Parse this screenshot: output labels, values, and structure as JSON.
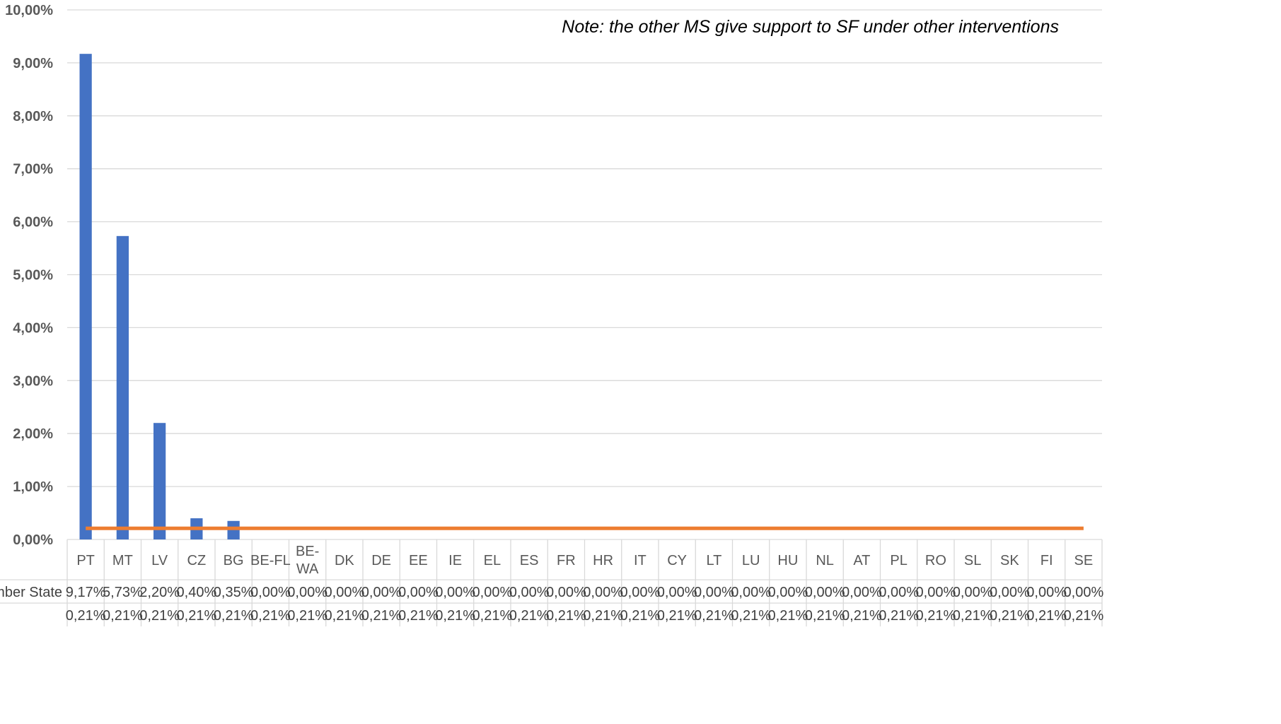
{
  "chart_data": {
    "type": "bar",
    "note": "Note: the other MS give support to SF under other interventions",
    "categories": [
      "PT",
      "MT",
      "LV",
      "CZ",
      "BG",
      "BE-FL",
      "BE-WA",
      "DK",
      "DE",
      "EE",
      "IE",
      "EL",
      "ES",
      "FR",
      "HR",
      "IT",
      "CY",
      "LT",
      "LU",
      "HU",
      "NL",
      "AT",
      "PL",
      "RO",
      "SL",
      "SK",
      "FI",
      "SE"
    ],
    "series": [
      {
        "name": "Member State",
        "kind": "bar",
        "color": "#4472C4",
        "values": [
          9.17,
          5.73,
          2.2,
          0.4,
          0.35,
          0,
          0,
          0,
          0,
          0,
          0,
          0,
          0,
          0,
          0,
          0,
          0,
          0,
          0,
          0,
          0,
          0,
          0,
          0,
          0,
          0,
          0,
          0
        ],
        "labels": [
          "9,17%",
          "5,73%",
          "2,20%",
          "0,40%",
          "0,35%",
          "0,00%",
          "0,00%",
          "0,00%",
          "0,00%",
          "0,00%",
          "0,00%",
          "0,00%",
          "0,00%",
          "0,00%",
          "0,00%",
          "0,00%",
          "0,00%",
          "0,00%",
          "0,00%",
          "0,00%",
          "0,00%",
          "0,00%",
          "0,00%",
          "0,00%",
          "0,00%",
          "0,00%",
          "0,00%",
          "0,00%"
        ]
      },
      {
        "name": "",
        "kind": "line",
        "color": "#ED7D31",
        "values": [
          0.21,
          0.21,
          0.21,
          0.21,
          0.21,
          0.21,
          0.21,
          0.21,
          0.21,
          0.21,
          0.21,
          0.21,
          0.21,
          0.21,
          0.21,
          0.21,
          0.21,
          0.21,
          0.21,
          0.21,
          0.21,
          0.21,
          0.21,
          0.21,
          0.21,
          0.21,
          0.21,
          0.21
        ],
        "labels": [
          "0,21%",
          "0,21%",
          "0,21%",
          "0,21%",
          "0,21%",
          "0,21%",
          "0,21%",
          "0,21%",
          "0,21%",
          "0,21%",
          "0,21%",
          "0,21%",
          "0,21%",
          "0,21%",
          "0,21%",
          "0,21%",
          "0,21%",
          "0,21%",
          "0,21%",
          "0,21%",
          "0,21%",
          "0,21%",
          "0,21%",
          "0,21%",
          "0,21%",
          "0,21%",
          "0,21%",
          "0,21%"
        ]
      }
    ],
    "ylim": [
      0,
      10
    ],
    "yticks": [
      0,
      1,
      2,
      3,
      4,
      5,
      6,
      7,
      8,
      9,
      10
    ],
    "ytick_labels": [
      "0,00%",
      "1,00%",
      "2,00%",
      "3,00%",
      "4,00%",
      "5,00%",
      "6,00%",
      "7,00%",
      "8,00%",
      "9,00%",
      "10,00%"
    ],
    "grid": true,
    "legend": "data table"
  }
}
